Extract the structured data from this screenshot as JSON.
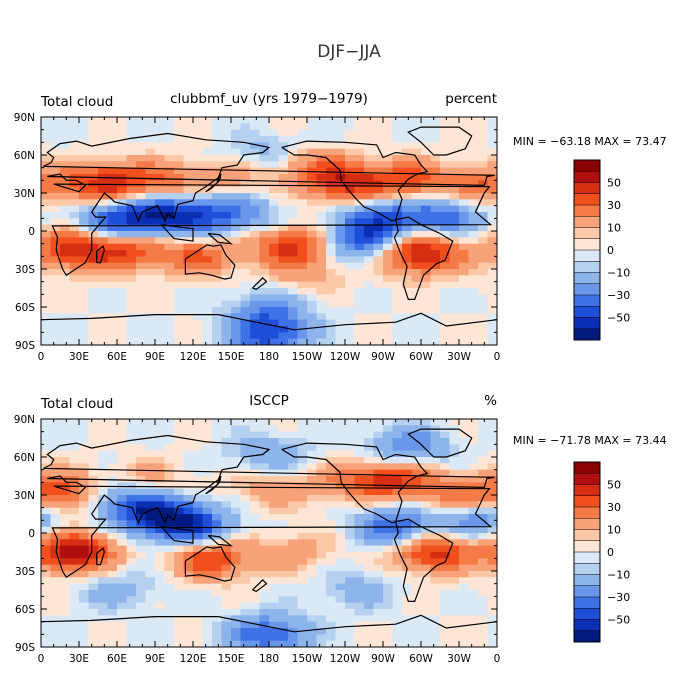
{
  "title": "DJF−JJA",
  "chart_data": [
    {
      "type": "heatmap",
      "panel": "top",
      "left_label": "Total cloud",
      "center_label": "clubbmf_uv (yrs 1979−1979)",
      "right_label": "percent",
      "x_range": [
        0,
        360
      ],
      "y_range": [
        -90,
        90
      ],
      "x_tick_labels": [
        "0",
        "30E",
        "60E",
        "90E",
        "120E",
        "150E",
        "180",
        "150W",
        "120W",
        "90W",
        "60W",
        "30W",
        "0"
      ],
      "y_tick_labels": [
        "90N",
        "60N",
        "30N",
        "0",
        "30S",
        "60S",
        "90S"
      ],
      "stats": "MIN = −63.18 MAX =  73.47",
      "min": -63.18,
      "max": 73.47,
      "colorbar_labels": [
        "50",
        "30",
        "10",
        "0",
        "−10",
        "−30",
        "−50"
      ],
      "features": [
        {
          "lon": 50,
          "lat": 38,
          "value": 45
        },
        {
          "lon": 95,
          "lat": 40,
          "value": 25
        },
        {
          "lon": 150,
          "lat": 40,
          "value": 15
        },
        {
          "lon": 240,
          "lat": 38,
          "value": 45
        },
        {
          "lon": 290,
          "lat": 40,
          "value": 35
        },
        {
          "lon": 350,
          "lat": 35,
          "value": 30
        },
        {
          "lon": 210,
          "lat": 52,
          "value": 20
        },
        {
          "lon": 25,
          "lat": -15,
          "value": 45
        },
        {
          "lon": 70,
          "lat": -15,
          "value": 35
        },
        {
          "lon": 125,
          "lat": -20,
          "value": 30
        },
        {
          "lon": 200,
          "lat": -12,
          "value": 45
        },
        {
          "lon": 300,
          "lat": -18,
          "value": 55
        },
        {
          "lon": 210,
          "lat": -35,
          "value": 12
        },
        {
          "lon": 60,
          "lat": 8,
          "value": -40
        },
        {
          "lon": 95,
          "lat": 12,
          "value": -45
        },
        {
          "lon": 130,
          "lat": 12,
          "value": -30
        },
        {
          "lon": 270,
          "lat": 10,
          "value": -40
        },
        {
          "lon": 320,
          "lat": 12,
          "value": -35
        },
        {
          "lon": 250,
          "lat": -8,
          "value": -40
        },
        {
          "lon": 160,
          "lat": 15,
          "value": -20
        },
        {
          "lon": 180,
          "lat": 62,
          "value": -15
        },
        {
          "lon": 180,
          "lat": -62,
          "value": -25
        },
        {
          "lon": 180,
          "lat": -82,
          "value": -45
        }
      ]
    },
    {
      "type": "heatmap",
      "panel": "bottom",
      "left_label": "Total cloud",
      "center_label": "ISCCP",
      "right_label": "%",
      "x_range": [
        0,
        360
      ],
      "y_range": [
        -90,
        90
      ],
      "x_tick_labels": [
        "0",
        "30E",
        "60E",
        "90E",
        "120E",
        "150E",
        "180",
        "150W",
        "120W",
        "90W",
        "60W",
        "30W",
        "0"
      ],
      "y_tick_labels": [
        "90N",
        "60N",
        "30N",
        "0",
        "30S",
        "60S",
        "90S"
      ],
      "stats": "MIN = −71.78 MAX =  73.44",
      "min": -71.78,
      "max": 73.44,
      "colorbar_labels": [
        "50",
        "30",
        "10",
        "0",
        "−10",
        "−30",
        "−50"
      ],
      "features": [
        {
          "lon": 25,
          "lat": -15,
          "value": 60
        },
        {
          "lon": 135,
          "lat": -20,
          "value": 40
        },
        {
          "lon": 310,
          "lat": -15,
          "value": 45
        },
        {
          "lon": 20,
          "lat": 32,
          "value": 40
        },
        {
          "lon": 280,
          "lat": 42,
          "value": 40
        },
        {
          "lon": 240,
          "lat": 40,
          "value": 20
        },
        {
          "lon": 80,
          "lat": 40,
          "value": 20
        },
        {
          "lon": 330,
          "lat": 30,
          "value": 25
        },
        {
          "lon": 180,
          "lat": 35,
          "value": 15
        },
        {
          "lon": 200,
          "lat": -15,
          "value": 15
        },
        {
          "lon": 90,
          "lat": 15,
          "value": -55
        },
        {
          "lon": 120,
          "lat": 5,
          "value": -45
        },
        {
          "lon": 60,
          "lat": 30,
          "value": -30
        },
        {
          "lon": 280,
          "lat": 5,
          "value": -40
        },
        {
          "lon": 345,
          "lat": 10,
          "value": -30
        },
        {
          "lon": 180,
          "lat": 62,
          "value": -20
        },
        {
          "lon": 290,
          "lat": 68,
          "value": -30
        },
        {
          "lon": 180,
          "lat": -80,
          "value": -40
        },
        {
          "lon": 60,
          "lat": -45,
          "value": -15
        },
        {
          "lon": 250,
          "lat": -45,
          "value": -15
        }
      ]
    }
  ]
}
